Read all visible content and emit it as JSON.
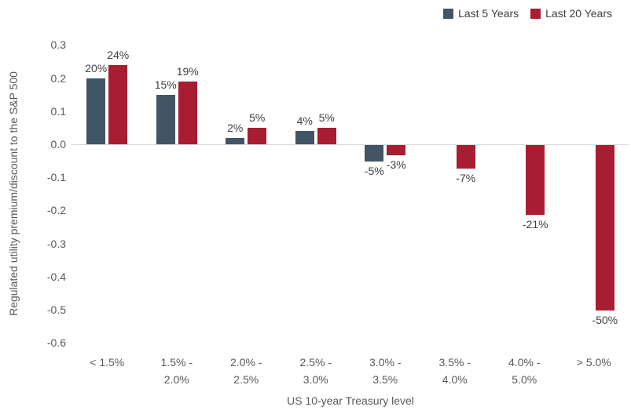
{
  "chart_data": {
    "type": "bar",
    "title": "",
    "xlabel": "US 10-year Treasury level",
    "ylabel": "Regulated utility premium/discount to the S&P 500",
    "categories": [
      "< 1.5%",
      "1.5% -\n2.0%",
      "2.0% -\n2.5%",
      "2.5% -\n3.0%",
      "3.0% -\n3.5%",
      "3.5% -\n4.0%",
      "4.0% -\n5.0%",
      "> 5.0%"
    ],
    "series": [
      {
        "name": "Last 5 Years",
        "color": "#425565",
        "values": [
          0.2,
          0.15,
          0.02,
          0.04,
          -0.05,
          null,
          null,
          null
        ],
        "labels": [
          "20%",
          "15%",
          "2%",
          "4%",
          "-5%",
          "",
          "",
          ""
        ]
      },
      {
        "name": "Last 20 Years",
        "color": "#A81D32",
        "values": [
          0.24,
          0.19,
          0.05,
          0.05,
          -0.03,
          -0.07,
          -0.21,
          -0.5
        ],
        "labels": [
          "24%",
          "19%",
          "5%",
          "5%",
          "-3%",
          "-7%",
          "-21%",
          "-50%"
        ]
      }
    ],
    "y_ticks": [
      0.3,
      0.2,
      0.1,
      0.0,
      -0.1,
      -0.2,
      -0.3,
      -0.4,
      -0.5,
      -0.6
    ],
    "y_tick_labels": [
      "0.3",
      "0.2",
      "0.1",
      "0.0",
      "-0.1",
      "-0.2",
      "-0.3",
      "-0.4",
      "-0.5",
      "-0.6"
    ],
    "ylim": [
      -0.6,
      0.3
    ],
    "grid": false,
    "legend_position": "top-right"
  },
  "colors": {
    "background": "#FFFFFF",
    "axis_text": "#595959",
    "data_label_text": "#404040",
    "zero_line": "#D9D9D9",
    "series_last_5_years": "#425565",
    "series_last_20_years": "#A81D32"
  }
}
